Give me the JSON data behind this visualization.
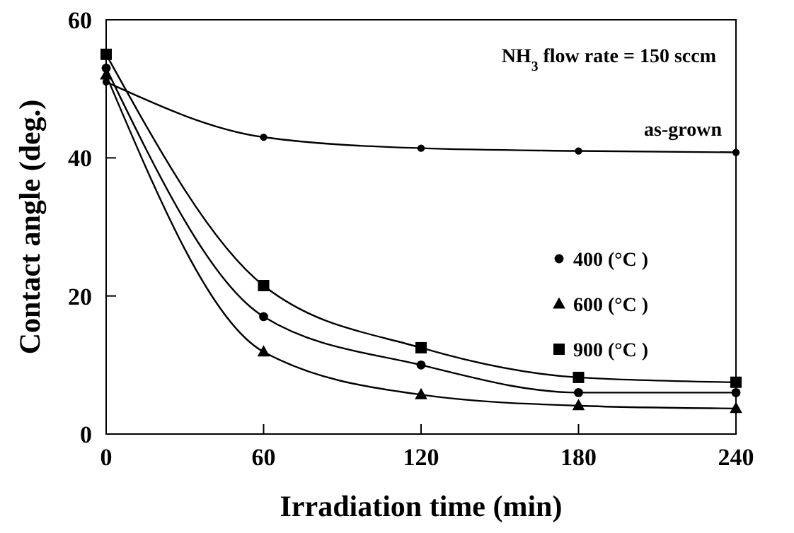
{
  "chart_data": {
    "type": "line",
    "xlabel": "Irradiation time (min)",
    "ylabel": "Contact angle (deg.)",
    "x": [
      0,
      60,
      120,
      180,
      240
    ],
    "series": [
      {
        "name": "as-grown",
        "color": "#000000",
        "marker": "circle",
        "values": [
          51,
          43,
          41.4,
          41,
          40.8
        ]
      },
      {
        "name": "400 (°C )",
        "color": "#000000",
        "marker": "circle",
        "values": [
          53,
          17,
          10,
          6,
          6
        ]
      },
      {
        "name": "600 (°C )",
        "color": "#000000",
        "marker": "triangle",
        "values": [
          52,
          11.9,
          5.7,
          4.1,
          3.7
        ]
      },
      {
        "name": "900 (°C )",
        "color": "#000000",
        "marker": "square",
        "values": [
          55,
          21.5,
          12.5,
          8.2,
          7.5
        ]
      }
    ],
    "xlim": [
      0,
      240
    ],
    "xticks": [
      0,
      60,
      120,
      180,
      240
    ],
    "ylim": [
      0,
      60
    ],
    "yticks": [
      0,
      20,
      40,
      60
    ],
    "grid": false,
    "legend": "right",
    "line_style": "solid",
    "annotations": [
      "NH$_{3}$ flow rate = 150 sccm"
    ]
  }
}
